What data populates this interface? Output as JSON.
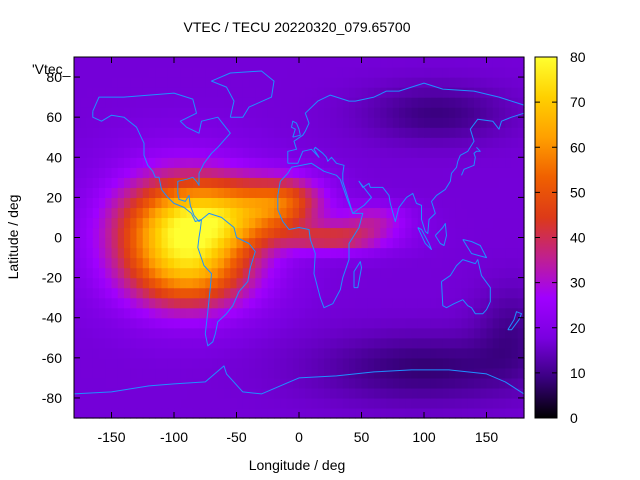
{
  "chart_data": {
    "type": "heatmap",
    "title": "VTEC / TECU 20220320_079.65700",
    "xlabel": "Longitude / deg",
    "ylabel": "Latitude / deg",
    "legend_key": "'Vtec_",
    "xlim": [
      -180,
      180
    ],
    "ylim": [
      -90,
      90
    ],
    "x_ticks": [
      -150,
      -100,
      -50,
      0,
      50,
      100,
      150
    ],
    "y_ticks": [
      -80,
      -60,
      -40,
      -20,
      0,
      20,
      40,
      60,
      80
    ],
    "colorbar": {
      "range": [
        0,
        80
      ],
      "ticks": [
        0,
        10,
        20,
        30,
        40,
        50,
        60,
        70,
        80
      ],
      "palette": [
        "#000000",
        "#3a0080",
        "#7a00e0",
        "#a000ff",
        "#c0208f",
        "#dd3a18",
        "#f06000",
        "#ffa000",
        "#ffd000",
        "#ffff30"
      ]
    },
    "grid_step_deg": 5,
    "background_level": 17,
    "blobs": [
      {
        "label": "equatorial anomaly peak",
        "lon": -93,
        "lat": 2,
        "amp": 58,
        "sx": 38,
        "sy": 20
      },
      {
        "label": "anomaly north crest",
        "lon": -50,
        "lat": 12,
        "amp": 22,
        "sx": 30,
        "sy": 12
      },
      {
        "label": "anomaly south crest",
        "lon": -85,
        "lat": -22,
        "amp": 16,
        "sx": 35,
        "sy": 12
      },
      {
        "label": "tongue north",
        "lon": -10,
        "lat": 18,
        "amp": 27,
        "sx": 22,
        "sy": 9
      },
      {
        "label": "tongue equatorial",
        "lon": 30,
        "lat": 0,
        "amp": 24,
        "sx": 30,
        "sy": 5
      },
      {
        "label": "tongue east",
        "lon": 60,
        "lat": 10,
        "amp": 14,
        "sx": 20,
        "sy": 5
      },
      {
        "label": "north polar low",
        "lon": 110,
        "lat": 62,
        "amp": -8,
        "sx": 40,
        "sy": 10
      },
      {
        "label": "south polar low",
        "lon": 100,
        "lat": -65,
        "amp": -9,
        "sx": 60,
        "sy": 12
      },
      {
        "label": "south-east low",
        "lon": 170,
        "lat": -45,
        "amp": -6,
        "sx": 20,
        "sy": 15
      }
    ],
    "coastlines": [
      {
        "name": "north-america",
        "pts": [
          [
            -165,
            63
          ],
          [
            -160,
            70
          ],
          [
            -140,
            70
          ],
          [
            -120,
            71
          ],
          [
            -100,
            72
          ],
          [
            -85,
            69
          ],
          [
            -82,
            62
          ],
          [
            -95,
            58
          ],
          [
            -90,
            55
          ],
          [
            -80,
            52
          ],
          [
            -78,
            58
          ],
          [
            -65,
            60
          ],
          [
            -55,
            52
          ],
          [
            -65,
            45
          ],
          [
            -70,
            42
          ],
          [
            -76,
            37
          ],
          [
            -80,
            32
          ],
          [
            -80,
            26
          ],
          [
            -82,
            28
          ],
          [
            -85,
            30
          ],
          [
            -90,
            29
          ],
          [
            -97,
            28
          ],
          [
            -97,
            22
          ],
          [
            -96,
            19
          ],
          [
            -91,
            18
          ],
          [
            -88,
            21
          ],
          [
            -87,
            16
          ],
          [
            -84,
            11
          ],
          [
            -80,
            8
          ],
          [
            -78,
            9
          ],
          [
            -83,
            8
          ],
          [
            -86,
            12
          ],
          [
            -92,
            15
          ],
          [
            -100,
            17
          ],
          [
            -105,
            20
          ],
          [
            -110,
            24
          ],
          [
            -112,
            30
          ],
          [
            -115,
            30
          ],
          [
            -117,
            33
          ],
          [
            -121,
            36
          ],
          [
            -124,
            41
          ],
          [
            -124,
            47
          ],
          [
            -130,
            55
          ],
          [
            -140,
            60
          ],
          [
            -150,
            61
          ],
          [
            -158,
            58
          ],
          [
            -165,
            60
          ],
          [
            -165,
            63
          ]
        ]
      },
      {
        "name": "greenland",
        "pts": [
          [
            -55,
            60
          ],
          [
            -45,
            60
          ],
          [
            -40,
            65
          ],
          [
            -22,
            70
          ],
          [
            -20,
            78
          ],
          [
            -30,
            83
          ],
          [
            -55,
            82
          ],
          [
            -70,
            78
          ],
          [
            -58,
            75
          ],
          [
            -52,
            68
          ],
          [
            -55,
            60
          ]
        ]
      },
      {
        "name": "south-america",
        "pts": [
          [
            -78,
            9
          ],
          [
            -72,
            12
          ],
          [
            -62,
            10
          ],
          [
            -52,
            5
          ],
          [
            -50,
            0
          ],
          [
            -40,
            -3
          ],
          [
            -35,
            -7
          ],
          [
            -39,
            -15
          ],
          [
            -41,
            -22
          ],
          [
            -48,
            -27
          ],
          [
            -53,
            -34
          ],
          [
            -58,
            -38
          ],
          [
            -65,
            -42
          ],
          [
            -67,
            -48
          ],
          [
            -69,
            -52
          ],
          [
            -73,
            -54
          ],
          [
            -75,
            -48
          ],
          [
            -73,
            -37
          ],
          [
            -71,
            -25
          ],
          [
            -70,
            -18
          ],
          [
            -76,
            -14
          ],
          [
            -81,
            -5
          ],
          [
            -80,
            0
          ],
          [
            -79,
            4
          ],
          [
            -78,
            9
          ]
        ]
      },
      {
        "name": "africa",
        "pts": [
          [
            -17,
            21
          ],
          [
            -15,
            28
          ],
          [
            -9,
            32
          ],
          [
            -6,
            35
          ],
          [
            10,
            37
          ],
          [
            20,
            33
          ],
          [
            30,
            31
          ],
          [
            33,
            29
          ],
          [
            38,
            20
          ],
          [
            43,
            12
          ],
          [
            51,
            12
          ],
          [
            48,
            5
          ],
          [
            40,
            -3
          ],
          [
            40,
            -11
          ],
          [
            35,
            -20
          ],
          [
            33,
            -26
          ],
          [
            27,
            -33
          ],
          [
            20,
            -35
          ],
          [
            17,
            -30
          ],
          [
            12,
            -18
          ],
          [
            13,
            -8
          ],
          [
            9,
            -1
          ],
          [
            8,
            4
          ],
          [
            0,
            5
          ],
          [
            -8,
            4
          ],
          [
            -13,
            8
          ],
          [
            -17,
            14
          ],
          [
            -17,
            21
          ]
        ]
      },
      {
        "name": "eurasia",
        "pts": [
          [
            -9,
            37
          ],
          [
            -9,
            43
          ],
          [
            -2,
            44
          ],
          [
            -4,
            48
          ],
          [
            3,
            51
          ],
          [
            5,
            53
          ],
          [
            8,
            57
          ],
          [
            5,
            62
          ],
          [
            15,
            68
          ],
          [
            25,
            71
          ],
          [
            40,
            68
          ],
          [
            45,
            68
          ],
          [
            60,
            70
          ],
          [
            70,
            73
          ],
          [
            80,
            73
          ],
          [
            100,
            77
          ],
          [
            115,
            74
          ],
          [
            140,
            73
          ],
          [
            160,
            70
          ],
          [
            175,
            67
          ],
          [
            180,
            66
          ],
          [
            180,
            62
          ],
          [
            170,
            60
          ],
          [
            162,
            58
          ],
          [
            160,
            54
          ],
          [
            155,
            58
          ],
          [
            143,
            59
          ],
          [
            137,
            54
          ],
          [
            140,
            48
          ],
          [
            135,
            43
          ],
          [
            129,
            41
          ],
          [
            127,
            38
          ],
          [
            126,
            35
          ],
          [
            122,
            32
          ],
          [
            121,
            28
          ],
          [
            117,
            24
          ],
          [
            110,
            21
          ],
          [
            106,
            18
          ],
          [
            109,
            12
          ],
          [
            104,
            9
          ],
          [
            103,
            2
          ],
          [
            101,
            3
          ],
          [
            98,
            9
          ],
          [
            98,
            16
          ],
          [
            94,
            17
          ],
          [
            91,
            22
          ],
          [
            86,
            20
          ],
          [
            80,
            15
          ],
          [
            77,
            8
          ],
          [
            73,
            17
          ],
          [
            72,
            21
          ],
          [
            67,
            25
          ],
          [
            57,
            25
          ],
          [
            56,
            27
          ],
          [
            51,
            25
          ],
          [
            48,
            28
          ],
          [
            53,
            24
          ],
          [
            58,
            20
          ],
          [
            52,
            16
          ],
          [
            45,
            13
          ],
          [
            43,
            12
          ],
          [
            35,
            28
          ],
          [
            35,
            32
          ],
          [
            36,
            36
          ],
          [
            30,
            37
          ],
          [
            26,
            40
          ],
          [
            23,
            38
          ],
          [
            22,
            40
          ],
          [
            19,
            42
          ],
          [
            13,
            45
          ],
          [
            12,
            44
          ],
          [
            16,
            40
          ],
          [
            10,
            44
          ],
          [
            3,
            43
          ],
          [
            -1,
            37
          ],
          [
            -9,
            37
          ]
        ]
      },
      {
        "name": "australia",
        "pts": [
          [
            114,
            -22
          ],
          [
            115,
            -34
          ],
          [
            118,
            -35
          ],
          [
            124,
            -33
          ],
          [
            131,
            -31
          ],
          [
            135,
            -34
          ],
          [
            138,
            -35
          ],
          [
            141,
            -38
          ],
          [
            147,
            -38
          ],
          [
            150,
            -36
          ],
          [
            153,
            -32
          ],
          [
            153,
            -25
          ],
          [
            146,
            -19
          ],
          [
            143,
            -11
          ],
          [
            141,
            -13
          ],
          [
            136,
            -12
          ],
          [
            131,
            -11
          ],
          [
            126,
            -14
          ],
          [
            121,
            -19
          ],
          [
            114,
            -22
          ]
        ]
      },
      {
        "name": "antarctica",
        "pts": [
          [
            -180,
            -78
          ],
          [
            -150,
            -77
          ],
          [
            -120,
            -74
          ],
          [
            -100,
            -73
          ],
          [
            -75,
            -72
          ],
          [
            -60,
            -64
          ],
          [
            -58,
            -68
          ],
          [
            -45,
            -77
          ],
          [
            -30,
            -78
          ],
          [
            0,
            -70
          ],
          [
            30,
            -69
          ],
          [
            60,
            -67
          ],
          [
            90,
            -66
          ],
          [
            120,
            -66
          ],
          [
            150,
            -68
          ],
          [
            165,
            -72
          ],
          [
            180,
            -78
          ]
        ]
      },
      {
        "name": "japan",
        "pts": [
          [
            130,
            31
          ],
          [
            132,
            34
          ],
          [
            136,
            35
          ],
          [
            140,
            36
          ],
          [
            141,
            40
          ],
          [
            140,
            42
          ],
          [
            142,
            43
          ],
          [
            145,
            43
          ],
          [
            142,
            45
          ]
        ]
      },
      {
        "name": "madagascar",
        "pts": [
          [
            44,
            -25
          ],
          [
            47,
            -25
          ],
          [
            50,
            -15
          ],
          [
            49,
            -12
          ],
          [
            44,
            -17
          ],
          [
            44,
            -25
          ]
        ]
      },
      {
        "name": "new-zealand",
        "pts": [
          [
            167,
            -46
          ],
          [
            172,
            -41
          ],
          [
            174,
            -37
          ],
          [
            178,
            -38
          ],
          [
            176,
            -41
          ],
          [
            170,
            -46
          ],
          [
            167,
            -46
          ]
        ]
      },
      {
        "name": "uk",
        "pts": [
          [
            -5,
            50
          ],
          [
            1,
            51
          ],
          [
            0,
            54
          ],
          [
            -2,
            57
          ],
          [
            -5,
            58
          ],
          [
            -6,
            55
          ],
          [
            -3,
            54
          ],
          [
            -5,
            50
          ]
        ]
      },
      {
        "name": "borneo",
        "pts": [
          [
            109,
            1
          ],
          [
            113,
            -3
          ],
          [
            116,
            -4
          ],
          [
            118,
            1
          ],
          [
            117,
            7
          ],
          [
            115,
            5
          ],
          [
            109,
            1
          ]
        ]
      },
      {
        "name": "sumatra",
        "pts": [
          [
            95,
            5
          ],
          [
            98,
            4
          ],
          [
            104,
            -3
          ],
          [
            106,
            -6
          ],
          [
            101,
            -3
          ],
          [
            95,
            5
          ]
        ]
      },
      {
        "name": "new-guinea",
        "pts": [
          [
            131,
            -1
          ],
          [
            138,
            -2
          ],
          [
            145,
            -4
          ],
          [
            150,
            -10
          ],
          [
            144,
            -9
          ],
          [
            138,
            -8
          ],
          [
            131,
            -1
          ]
        ]
      }
    ]
  }
}
